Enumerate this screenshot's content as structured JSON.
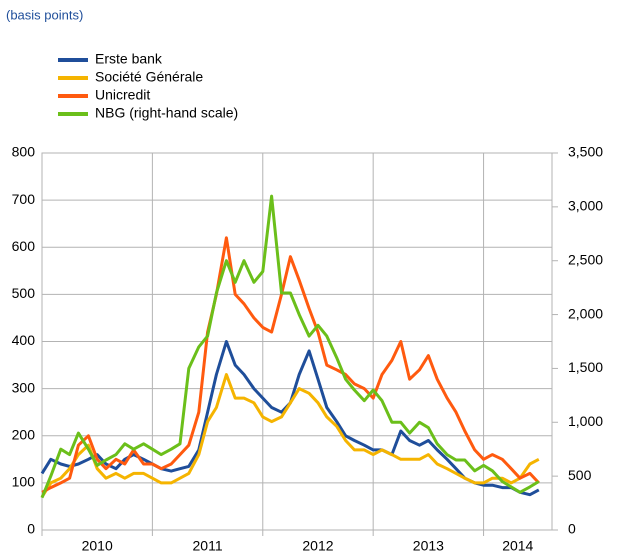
{
  "chart_data": {
    "type": "line",
    "subtitle": "(basis points)",
    "legend": "top-left",
    "grid": true,
    "x": [
      2010,
      2010.08,
      2010.17,
      2010.25,
      2010.33,
      2010.42,
      2010.5,
      2010.58,
      2010.67,
      2010.75,
      2010.83,
      2010.92,
      2011,
      2011.08,
      2011.17,
      2011.25,
      2011.33,
      2011.42,
      2011.5,
      2011.58,
      2011.67,
      2011.75,
      2011.83,
      2011.92,
      2012,
      2012.08,
      2012.17,
      2012.25,
      2012.33,
      2012.42,
      2012.5,
      2012.58,
      2012.67,
      2012.75,
      2012.83,
      2012.92,
      2013,
      2013.08,
      2013.17,
      2013.25,
      2013.33,
      2013.42,
      2013.5,
      2013.58,
      2013.67,
      2013.75,
      2013.83,
      2013.92,
      2014,
      2014.08,
      2014.17,
      2014.25,
      2014.33,
      2014.42,
      2014.5
    ],
    "xlim": [
      2010,
      2014.62
    ],
    "xticks": [
      2010,
      2011,
      2012,
      2013,
      2014
    ],
    "ylim": [
      0,
      800
    ],
    "yticks": [
      0,
      100,
      200,
      300,
      400,
      500,
      600,
      700,
      800
    ],
    "y2lim": [
      0,
      3500
    ],
    "y2ticks": [
      0,
      500,
      {
        "value": 1000,
        "label": "1,000"
      },
      {
        "value": 1500,
        "label": "1,500"
      },
      {
        "value": 2000,
        "label": "2,000"
      },
      {
        "value": 2500,
        "label": "2,500"
      },
      {
        "value": 3000,
        "label": "3,000"
      },
      {
        "value": 3500,
        "label": "3,500"
      }
    ],
    "series": [
      {
        "name": "Erste bank",
        "color": "#1f4e9a",
        "values": [
          120,
          150,
          140,
          135,
          140,
          150,
          160,
          140,
          130,
          150,
          160,
          150,
          140,
          130,
          125,
          130,
          135,
          170,
          250,
          330,
          400,
          350,
          330,
          300,
          280,
          260,
          250,
          270,
          330,
          380,
          320,
          260,
          230,
          200,
          190,
          180,
          170,
          170,
          160,
          210,
          190,
          180,
          190,
          170,
          150,
          130,
          110,
          100,
          95,
          95,
          90,
          90,
          80,
          75,
          85
        ]
      },
      {
        "name": "Société Générale",
        "color": "#f5b400",
        "values": [
          70,
          100,
          110,
          130,
          160,
          180,
          130,
          110,
          120,
          110,
          120,
          120,
          110,
          100,
          100,
          110,
          120,
          160,
          230,
          260,
          330,
          280,
          280,
          270,
          240,
          230,
          240,
          270,
          300,
          290,
          270,
          240,
          220,
          190,
          170,
          170,
          160,
          170,
          160,
          150,
          150,
          150,
          160,
          140,
          130,
          120,
          110,
          100,
          100,
          110,
          110,
          100,
          110,
          140,
          150
        ]
      },
      {
        "name": "Unicredit",
        "color": "#ff5a0f",
        "values": [
          80,
          90,
          100,
          110,
          180,
          200,
          150,
          130,
          150,
          140,
          170,
          140,
          140,
          130,
          140,
          160,
          180,
          250,
          420,
          500,
          620,
          500,
          480,
          450,
          430,
          420,
          500,
          580,
          530,
          470,
          420,
          350,
          340,
          330,
          310,
          300,
          280,
          330,
          360,
          400,
          320,
          340,
          370,
          320,
          280,
          250,
          210,
          170,
          150,
          160,
          150,
          130,
          110,
          120,
          100
        ]
      },
      {
        "name": "NBG (right-hand scale)",
        "color": "#6bbf1a",
        "axis": "y2",
        "values": [
          300,
          500,
          750,
          700,
          900,
          750,
          600,
          650,
          700,
          800,
          750,
          800,
          750,
          700,
          750,
          800,
          1500,
          1700,
          1800,
          2200,
          2500,
          2300,
          2500,
          2300,
          2400,
          3100,
          2200,
          2200,
          2000,
          1800,
          1900,
          1800,
          1600,
          1400,
          1300,
          1200,
          1300,
          1200,
          1000,
          1000,
          900,
          1000,
          950,
          800,
          700,
          650,
          650,
          550,
          600,
          550,
          450,
          400,
          350,
          400,
          450
        ]
      }
    ]
  }
}
